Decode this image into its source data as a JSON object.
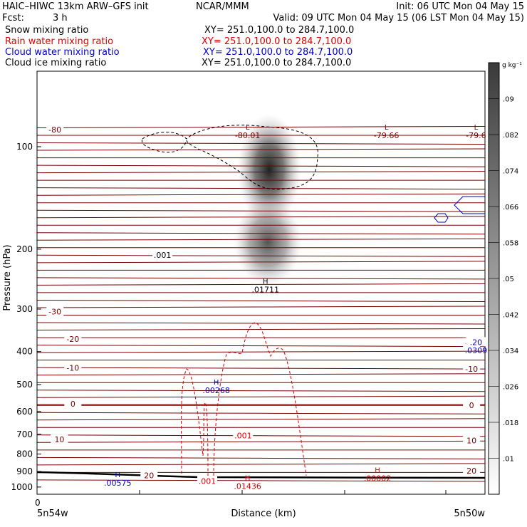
{
  "header": {
    "model": "HAIC–HIWC 13km ARW–GFS init",
    "center": "NCAR/MMM",
    "init": "Init: 06 UTC Mon 04 May 15",
    "fcst_label": "Fcst:",
    "fcst_value": "3 h",
    "valid": "Valid: 09 UTC Mon 04 May 15 (06 LST Mon 04 May 15)"
  },
  "fields": [
    {
      "name": "Snow mixing ratio",
      "xy": "XY= 251.0,100.0 to 284.7,100.0",
      "color": "#000000"
    },
    {
      "name": "Rain water mixing ratio",
      "xy": "XY= 251.0,100.0 to 284.7,100.0",
      "color": "#dd0000"
    },
    {
      "name": "Cloud water mixing ratio",
      "xy": "XY= 251.0,100.0 to 284.7,100.0",
      "color": "#0000cc"
    },
    {
      "name": "Cloud ice mixing ratio",
      "xy": "XY= 251.0,100.0 to 284.7,100.0",
      "color": "#000000"
    }
  ],
  "colors": {
    "temperature": "#7a0000",
    "rain": "#dd0000",
    "cloud_water": "#0000cc",
    "ice": "#000000",
    "terrain": "#000000"
  },
  "chart_data": {
    "type": "contour cross-section",
    "ylabel": "Pressure (hPa)",
    "xlabel": "Distance (km)",
    "x_left_label": "5n54w",
    "x_right_label": "5n50w",
    "x_zero_label": "0",
    "ylim": [
      1050,
      60
    ],
    "y_scale": "log",
    "y_ticks": [
      100,
      200,
      300,
      400,
      500,
      600,
      700,
      800,
      900,
      1000
    ],
    "colorbar": {
      "unit": "g kg⁻¹",
      "ticks": [
        ".01",
        ".018",
        ".026",
        ".034",
        ".042",
        ".05",
        ".058",
        ".066",
        ".074",
        ".082",
        ".09"
      ]
    },
    "temperature_labels": [
      {
        "text": "-80",
        "p": 89,
        "x": 0.04
      },
      {
        "text": "-30",
        "p": 305,
        "x": 0.04
      },
      {
        "text": "-20",
        "p": 367,
        "x": 0.08
      },
      {
        "text": "-10",
        "p": 446,
        "x": 0.08
      },
      {
        "text": "0",
        "p": 570,
        "x": 0.08
      },
      {
        "text": "10",
        "p": 725,
        "x": 0.05
      },
      {
        "text": "20",
        "p": 925,
        "x": 0.25
      },
      {
        "text": "-20",
        "p": 377,
        "x": 0.97
      },
      {
        "text": "-10",
        "p": 450,
        "x": 0.97
      },
      {
        "text": "0",
        "p": 575,
        "x": 0.97
      },
      {
        "text": "10",
        "p": 730,
        "x": 0.97
      },
      {
        "text": "20",
        "p": 895,
        "x": 0.97
      }
    ],
    "temperature_lows": [
      {
        "label": "L",
        "value": "-80.01",
        "p": 90,
        "x": 0.47
      },
      {
        "label": "L",
        "value": "-79.66",
        "p": 90,
        "x": 0.78
      },
      {
        "label": "L",
        "value": "-79.6",
        "p": 90,
        "x": 0.98
      }
    ],
    "ice_highs": [
      {
        "label": "H",
        "value": ".01711",
        "p": 255,
        "x": 0.51
      }
    ],
    "ice_contour_labels": [
      {
        "text": ".001",
        "p": 208,
        "x": 0.28
      }
    ],
    "cloud_water_highs": [
      {
        "label": "H",
        "value": ".00268",
        "p": 505,
        "x": 0.4
      },
      {
        "label": "H",
        "value": ".0309",
        "p": 385,
        "x": 0.98
      },
      {
        "label": "H",
        "value": ".00575",
        "p": 945,
        "x": 0.18
      }
    ],
    "cloud_water_contour_labels": [
      {
        "text": ".20",
        "p": 375,
        "x": 0.98
      }
    ],
    "rain_highs": [
      {
        "label": "H",
        "value": ".01436",
        "p": 965,
        "x": 0.47
      },
      {
        "label": "H",
        "value": ".00002",
        "p": 915,
        "x": 0.76
      }
    ],
    "rain_contour_labels": [
      {
        "text": ".001",
        "p": 705,
        "x": 0.46
      },
      {
        "text": ".001",
        "p": 960,
        "x": 0.38
      }
    ]
  }
}
